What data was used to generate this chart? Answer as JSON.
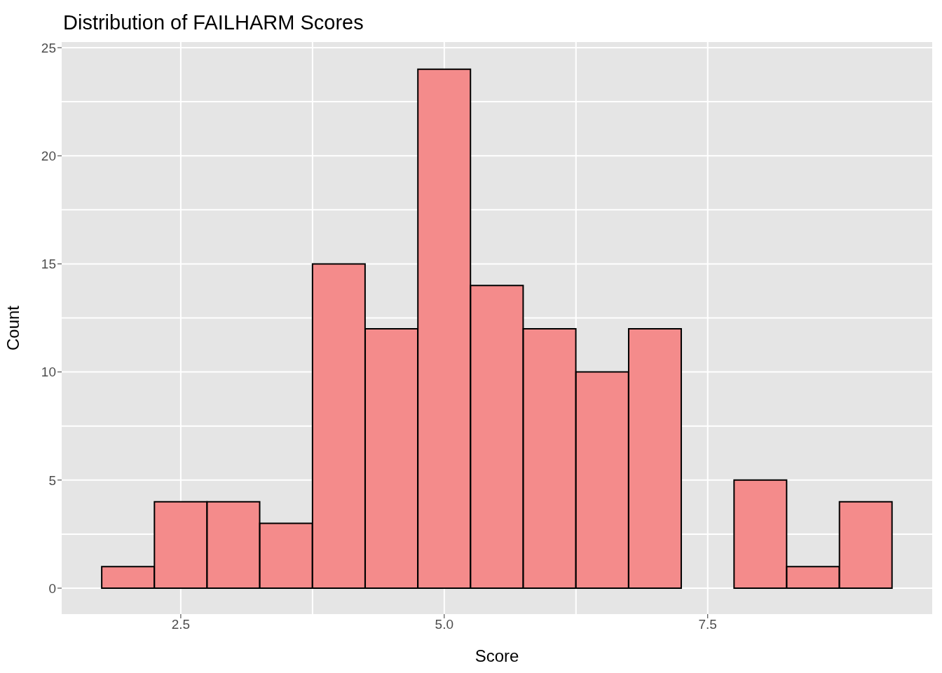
{
  "chart_data": {
    "type": "histogram",
    "title": "Distribution of FAILHARM Scores",
    "xlabel": "Score",
    "ylabel": "Count",
    "bins": [
      1.75,
      2.25,
      2.75,
      3.25,
      3.75,
      4.25,
      4.75,
      5.25,
      5.75,
      6.25,
      6.75,
      7.25,
      7.75,
      8.25,
      8.75,
      9.25
    ],
    "values": [
      1,
      4,
      4,
      3,
      15,
      12,
      24,
      14,
      12,
      10,
      12,
      0,
      5,
      1,
      4
    ],
    "color": "#f48b8b",
    "xlim": [
      1.37,
      9.63
    ],
    "xticks": [
      {
        "value": 2.5,
        "label": "2.5"
      },
      {
        "value": 5,
        "label": "5.0"
      },
      {
        "value": 7.5,
        "label": "7.5"
      }
    ],
    "ylim": [
      -1.2,
      25.26
    ],
    "yticks": [
      0,
      5,
      10,
      15,
      20,
      25
    ],
    "grid": true
  }
}
